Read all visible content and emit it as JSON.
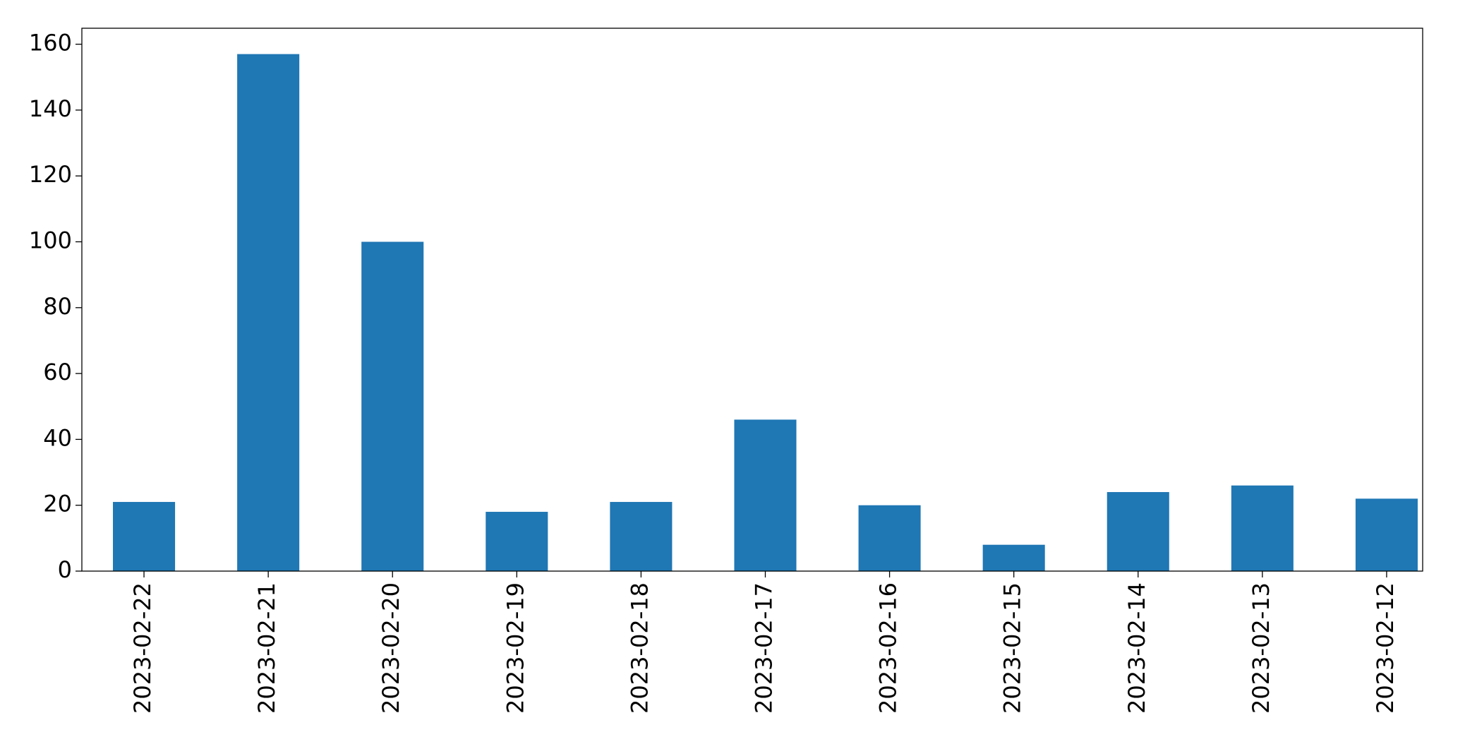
{
  "chart_data": {
    "type": "bar",
    "categories": [
      "2023-02-22",
      "2023-02-21",
      "2023-02-20",
      "2023-02-19",
      "2023-02-18",
      "2023-02-17",
      "2023-02-16",
      "2023-02-15",
      "2023-02-14",
      "2023-02-13",
      "2023-02-12"
    ],
    "values": [
      21,
      157,
      100,
      18,
      21,
      46,
      20,
      8,
      24,
      26,
      22
    ],
    "color": "#1f77b4",
    "ylim": [
      0,
      164.85
    ],
    "yticks": [
      0,
      20,
      40,
      60,
      80,
      100,
      120,
      140,
      160
    ],
    "grid": false
  }
}
